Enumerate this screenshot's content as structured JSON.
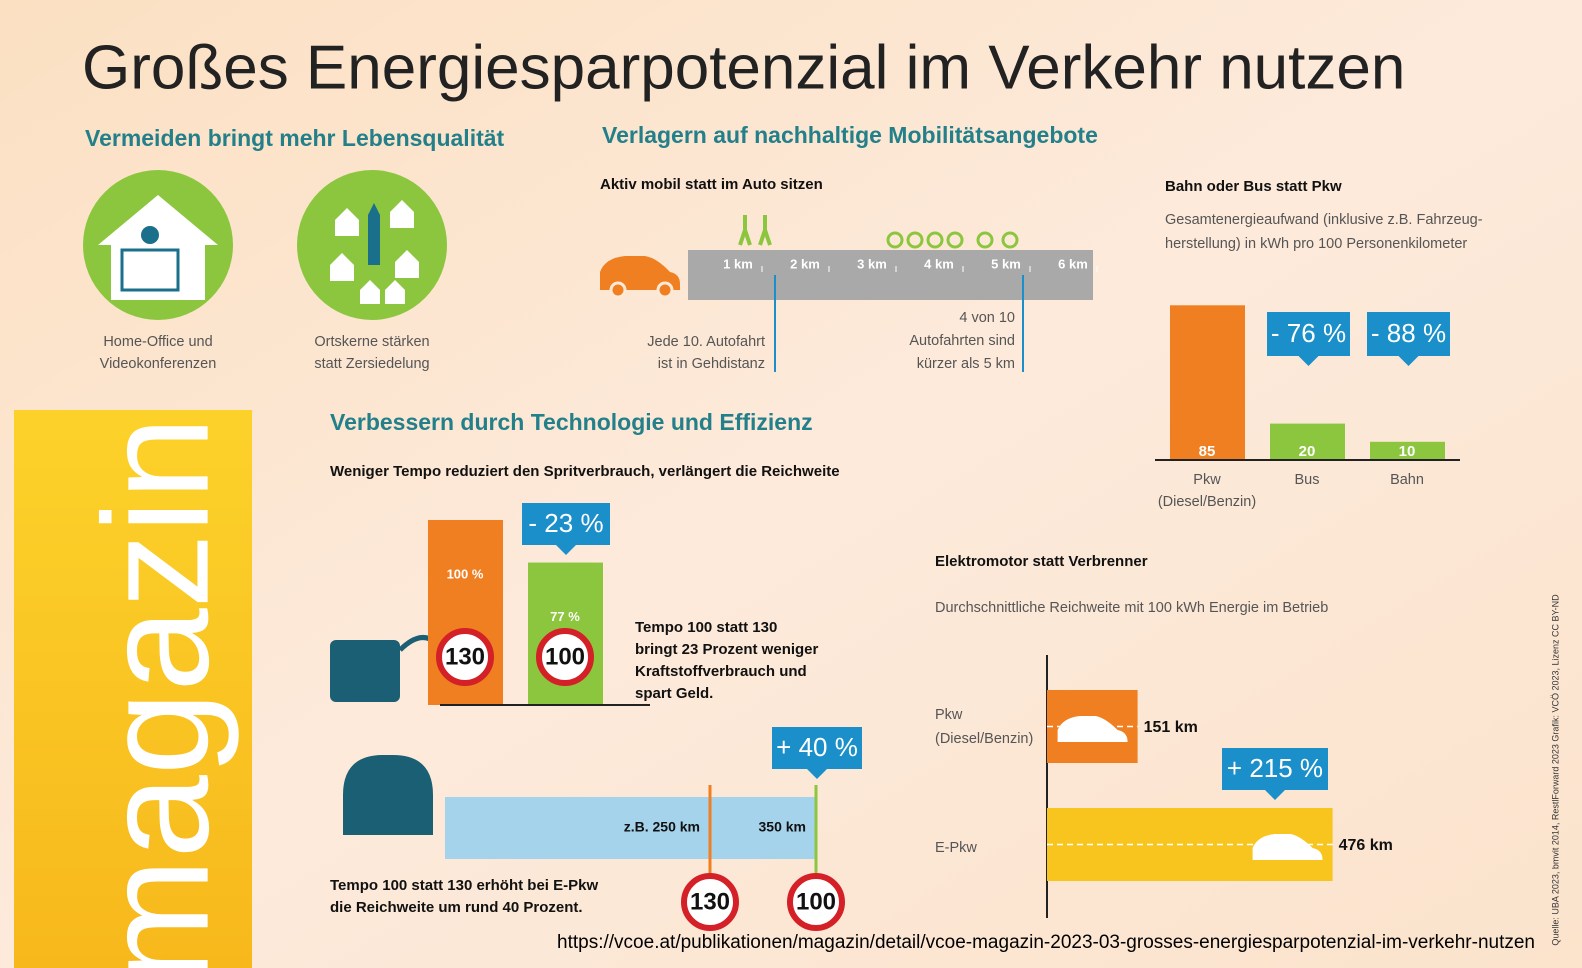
{
  "title": "Großes Energiesparpotenzial im Verkehr nutzen",
  "side_label": "magazin",
  "source": "Quelle: UBA 2023, bmvit 2014, RestlForward 2023 Grafik: VCÖ 2023, Lizenz CC BY-ND",
  "url": "https://vcoe.at/publikationen/magazin/detail/vcoe-magazin-2023-03-grosses-energiesparpotenzial-im-verkehr-nutzen",
  "vermeiden": {
    "heading": "Vermeiden bringt mehr Lebensqualität",
    "items": [
      [
        "Home-Office und",
        "Videokonferenzen"
      ],
      [
        "Ortskerne stärken",
        "statt Zersiedelung"
      ]
    ]
  },
  "verlagern": {
    "heading": "Verlagern auf nachhaltige Mobilitätsangebote",
    "aktiv": {
      "title": "Aktiv mobil statt im Auto sitzen",
      "km": [
        "1 km",
        "2 km",
        "3 km",
        "4 km",
        "5 km",
        "6 km"
      ],
      "notes": [
        [
          "Jede 10. Autofahrt",
          "ist in Gehdistanz"
        ],
        [
          "4 von 10",
          "Autofahrten sind",
          "kürzer als 5 km"
        ]
      ]
    },
    "bahn": {
      "title": "Bahn oder Bus statt Pkw",
      "subtitle": [
        "Gesamtenergieaufwand (inklusive z.B. Fahrzeug-",
        "herstellung) in kWh pro 100 Personenkilometer"
      ],
      "categories": [
        [
          "Pkw",
          "(Diesel/Benzin)"
        ],
        [
          "Bus"
        ],
        [
          "Bahn"
        ]
      ],
      "values": [
        85,
        20,
        10
      ],
      "colors": [
        "#f07f22",
        "#8cc63e",
        "#8cc63e"
      ],
      "badges": [
        "- 76 %",
        "- 88 %"
      ]
    }
  },
  "verbessern": {
    "heading": "Verbessern durch Technologie und Effizienz",
    "subtitle": "Weniger Tempo reduziert den Spritverbrauch, verlängert die Reichweite",
    "tempo": {
      "values": [
        100,
        77
      ],
      "value_labels": [
        "100 %",
        "77 %"
      ],
      "colors": [
        "#f07f22",
        "#8cc63e"
      ],
      "signs": [
        130,
        100
      ],
      "badge": "- 23 %",
      "text": [
        "Tempo 100 statt 130",
        "bringt 23 Prozent weniger",
        "Kraftstoffverbrauch und",
        "spart Geld."
      ]
    },
    "reichweite": {
      "values": [
        250,
        350
      ],
      "value_labels": [
        "z.B. 250 km",
        "350 km"
      ],
      "colors": [
        "#f07f22",
        "#8cc63e"
      ],
      "signs": [
        130,
        100
      ],
      "badge": "+ 40 %",
      "text": [
        "Tempo 100 statt 130 erhöht bei E-Pkw",
        "die Reichweite um rund 40 Prozent."
      ]
    }
  },
  "elektro": {
    "title": "Elektromotor statt Verbrenner",
    "subtitle": "Durchschnittliche Reichweite mit 100 kWh Energie im Betrieb",
    "categories": [
      [
        "Pkw",
        "(Diesel/Benzin)"
      ],
      [
        "E-Pkw"
      ]
    ],
    "values": [
      151,
      476
    ],
    "value_labels": [
      "151 km",
      "476 km"
    ],
    "colors": [
      "#f07f22",
      "#f7c51e"
    ],
    "badge": "+ 215 %"
  }
}
